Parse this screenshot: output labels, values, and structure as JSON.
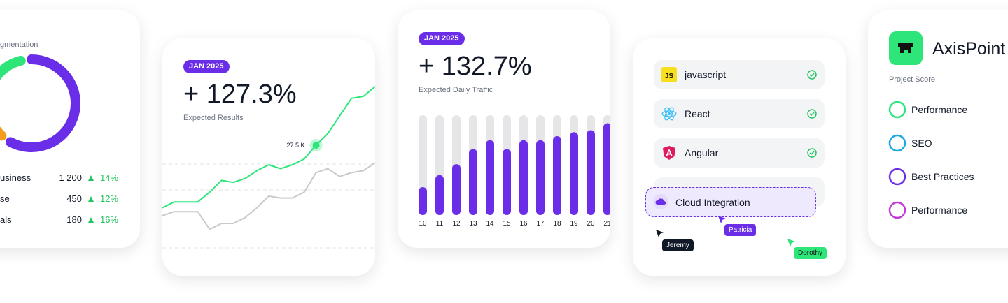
{
  "segmentation": {
    "title": "gmentation",
    "donut": {
      "values": [
        1200,
        180,
        450
      ],
      "colors": [
        "#6b2ee8",
        "#f29d1e",
        "#2ee57a"
      ]
    },
    "rows": [
      {
        "label": "usiness",
        "value": "1 200",
        "change": "14%"
      },
      {
        "label": "se",
        "value": "450",
        "change": "12%"
      },
      {
        "label": "als",
        "value": "180",
        "change": "16%"
      }
    ]
  },
  "results": {
    "badge": "JAN 2025",
    "headline": "+ 127.3%",
    "subtitle": "Expected Results",
    "chart": {
      "type": "line",
      "x": [
        0,
        1,
        2,
        3,
        4,
        5,
        6,
        7,
        8,
        9,
        10,
        11,
        12,
        13,
        14,
        15,
        16,
        17,
        18
      ],
      "xlim": [
        0,
        18
      ],
      "ylim": [
        0,
        100
      ],
      "series": [
        {
          "color": "#c9c9cc",
          "values": [
            29,
            31,
            31,
            31,
            22,
            25,
            25,
            28,
            33,
            39,
            38,
            38,
            41,
            51,
            53,
            49,
            51,
            52,
            56
          ]
        },
        {
          "color": "#2ee57a",
          "values": [
            33,
            36,
            36,
            36,
            41,
            47,
            46,
            48,
            52,
            55,
            53,
            55,
            58,
            65,
            71,
            80,
            89,
            90,
            95
          ]
        }
      ],
      "annotation": {
        "text": "27.5 K",
        "x": 13,
        "y": 65
      }
    }
  },
  "traffic": {
    "badge": "JAN 2025",
    "headline": "+ 132.7%",
    "subtitle": "Expected Daily Traffic",
    "chart": {
      "type": "bar",
      "categories": [
        "10",
        "11",
        "12",
        "13",
        "14",
        "15",
        "16",
        "17",
        "18",
        "19",
        "20",
        "21"
      ],
      "values": [
        28,
        40,
        51,
        66,
        75,
        66,
        75,
        75,
        79,
        83,
        85,
        92
      ],
      "ylim": [
        0,
        100
      ],
      "color": "#6b2ee8",
      "track_color": "#e6e6e9"
    }
  },
  "integrations": {
    "items": [
      {
        "label": "javascript",
        "icon": "JS"
      },
      {
        "label": "React"
      },
      {
        "label": "Angular"
      }
    ],
    "dragging": "Cloud Integration",
    "cursors": [
      {
        "name": "Jeremy",
        "color": "#111827"
      },
      {
        "name": "Patricia",
        "color": "#6b2ee8"
      },
      {
        "name": "Dorothy",
        "color": "#2ee57a"
      }
    ]
  },
  "score": {
    "brand": "AxisPoint",
    "label": "Project Score",
    "items": [
      {
        "label": "Performance",
        "color": "#2ee57a"
      },
      {
        "label": "SEO",
        "color": "#1ea7e0"
      },
      {
        "label": "Best Practices",
        "color": "#6b2ee8"
      },
      {
        "label": "Performance",
        "color": "#c23ad8"
      }
    ]
  }
}
